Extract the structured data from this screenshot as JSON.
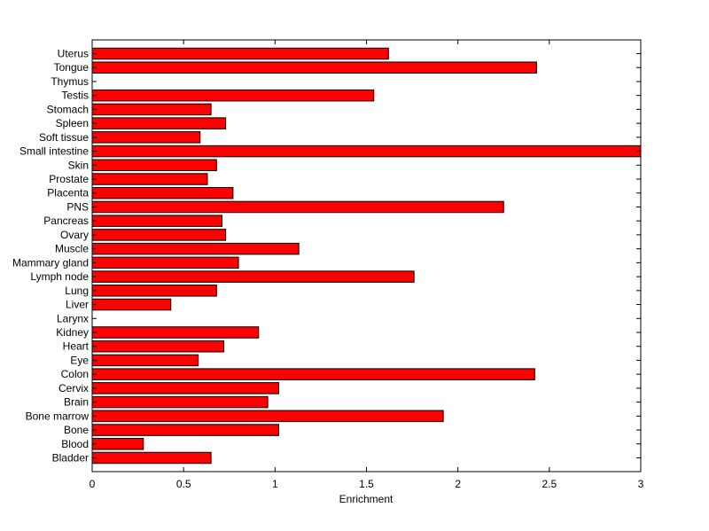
{
  "chart_data": {
    "type": "bar",
    "orientation": "horizontal",
    "title": "",
    "xlabel": "Enrichment",
    "ylabel": "",
    "xlim": [
      0,
      3
    ],
    "xticks": [
      0,
      0.5,
      1,
      1.5,
      2,
      2.5,
      3
    ],
    "xtick_labels": [
      "0",
      "0.5",
      "1",
      "1.5",
      "2",
      "2.5",
      "3"
    ],
    "grid": false,
    "bar_color": "#ff0000",
    "bar_edge_color": "#000000",
    "categories": [
      "Uterus",
      "Tongue",
      "Thymus",
      "Testis",
      "Stomach",
      "Spleen",
      "Soft tissue",
      "Small intestine",
      "Skin",
      "Prostate",
      "Placenta",
      "PNS",
      "Pancreas",
      "Ovary",
      "Muscle",
      "Mammary gland",
      "Lymph node",
      "Lung",
      "Liver",
      "Larynx",
      "Kidney",
      "Heart",
      "Eye",
      "Colon",
      "Cervix",
      "Brain",
      "Bone marrow",
      "Bone",
      "Blood",
      "Bladder"
    ],
    "values": [
      1.62,
      2.43,
      0,
      1.54,
      0.65,
      0.73,
      0.59,
      3.0,
      0.68,
      0.63,
      0.77,
      2.25,
      0.71,
      0.73,
      1.13,
      0.8,
      1.76,
      0.68,
      0.43,
      0,
      0.91,
      0.72,
      0.58,
      2.42,
      1.02,
      0.96,
      1.92,
      1.02,
      0.28,
      0.65
    ]
  }
}
